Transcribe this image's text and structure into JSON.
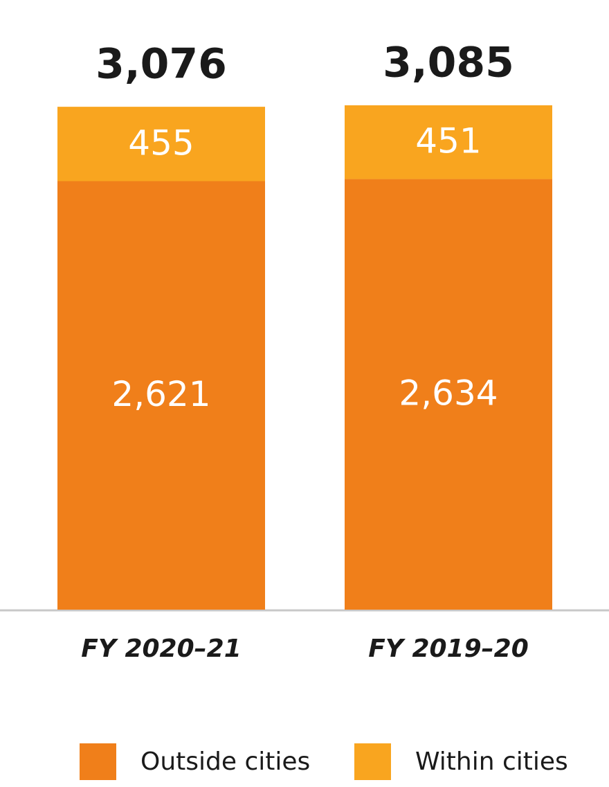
{
  "chart_data": {
    "type": "stacked_bar",
    "categories": [
      "FY 2020–21",
      "FY 2019–20"
    ],
    "series": [
      {
        "name": "Outside cities",
        "color": "#f07f1a",
        "values": [
          2621,
          2634
        ],
        "value_labels": [
          "2,621",
          "2,634"
        ]
      },
      {
        "name": "Within cities",
        "color": "#f9a51f",
        "values": [
          455,
          451
        ]
      }
    ],
    "totals": {
      "values": [
        3076,
        3085
      ],
      "value_labels": [
        "3,076",
        "3,085"
      ]
    }
  }
}
